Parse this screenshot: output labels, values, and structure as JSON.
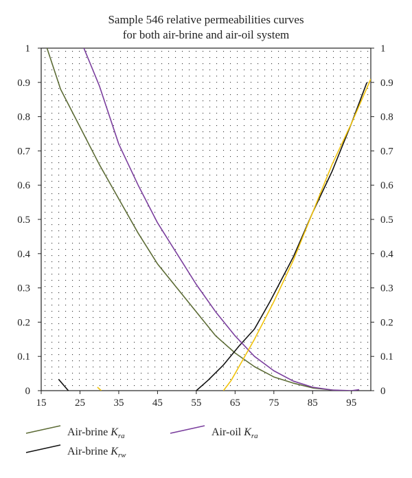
{
  "chart_data": {
    "type": "line",
    "title": [
      "Sample 546 relative permeabilities curves",
      "for both air-brine and air-oil system"
    ],
    "xlabel": "",
    "ylabel": "",
    "xlim": [
      15,
      100
    ],
    "ylim": [
      0,
      1
    ],
    "x_ticks": [
      "15",
      "25",
      "35",
      "45",
      "55",
      "65",
      "75",
      "85",
      "95"
    ],
    "y_ticks": [
      "0",
      "0.1",
      "0.2",
      "0.3",
      "0.4",
      "0.5",
      "0.6",
      "0.7",
      "0.8",
      "0.9",
      "1"
    ],
    "grid": "dotted",
    "legend_position": "bottom",
    "series": [
      {
        "key": "brine_kra",
        "legend_prefix": "Air-brine ",
        "legend_k": "K",
        "legend_sub": "ra",
        "color": "#5c6b35",
        "points": [
          [
            16.5,
            1.0
          ],
          [
            20,
            0.88
          ],
          [
            25,
            0.77
          ],
          [
            30,
            0.66
          ],
          [
            35,
            0.56
          ],
          [
            40,
            0.46
          ],
          [
            45,
            0.37
          ],
          [
            50,
            0.3
          ],
          [
            55,
            0.23
          ],
          [
            60,
            0.16
          ],
          [
            65,
            0.11
          ],
          [
            70,
            0.07
          ],
          [
            75,
            0.04
          ],
          [
            80,
            0.022
          ],
          [
            85,
            0.008
          ],
          [
            90,
            0.002
          ],
          [
            92,
            0.0
          ]
        ]
      },
      {
        "key": "brine_krw",
        "legend_prefix": "Air-brine ",
        "legend_k": "K",
        "legend_sub": "rw",
        "color": "#111111",
        "segments": [
          [
            [
              19.5,
              0.033
            ],
            [
              22,
              0.0
            ]
          ],
          [
            [
              55,
              0.0
            ],
            [
              58,
              0.03
            ],
            [
              62,
              0.075
            ],
            [
              66,
              0.13
            ],
            [
              70,
              0.18
            ],
            [
              74,
              0.26
            ],
            [
              80,
              0.39
            ],
            [
              85,
              0.52
            ],
            [
              90,
              0.64
            ],
            [
              95,
              0.78
            ],
            [
              99,
              0.9
            ]
          ]
        ]
      },
      {
        "key": "oil_kra",
        "legend_prefix": "Air-oil ",
        "legend_k": "K",
        "legend_sub": "ra",
        "color": "#7a3e9d",
        "points": [
          [
            26,
            1.0
          ],
          [
            30,
            0.89
          ],
          [
            35,
            0.72
          ],
          [
            40,
            0.6
          ],
          [
            45,
            0.49
          ],
          [
            50,
            0.4
          ],
          [
            55,
            0.31
          ],
          [
            60,
            0.23
          ],
          [
            65,
            0.16
          ],
          [
            70,
            0.1
          ],
          [
            75,
            0.058
          ],
          [
            80,
            0.028
          ],
          [
            85,
            0.01
          ],
          [
            90,
            0.002
          ],
          [
            95,
            0.0
          ],
          [
            97,
            0.003
          ]
        ]
      },
      {
        "key": "yellow",
        "color": "#f0c20a",
        "segments": [
          [
            [
              29.5,
              0.01
            ],
            [
              30.5,
              0.0
            ]
          ],
          [
            [
              62,
              0.0
            ],
            [
              64,
              0.03
            ],
            [
              66,
              0.07
            ],
            [
              70,
              0.15
            ],
            [
              75,
              0.26
            ],
            [
              80,
              0.38
            ],
            [
              85,
              0.52
            ],
            [
              90,
              0.66
            ],
            [
              95,
              0.78
            ],
            [
              100,
              0.91
            ]
          ]
        ]
      }
    ]
  }
}
